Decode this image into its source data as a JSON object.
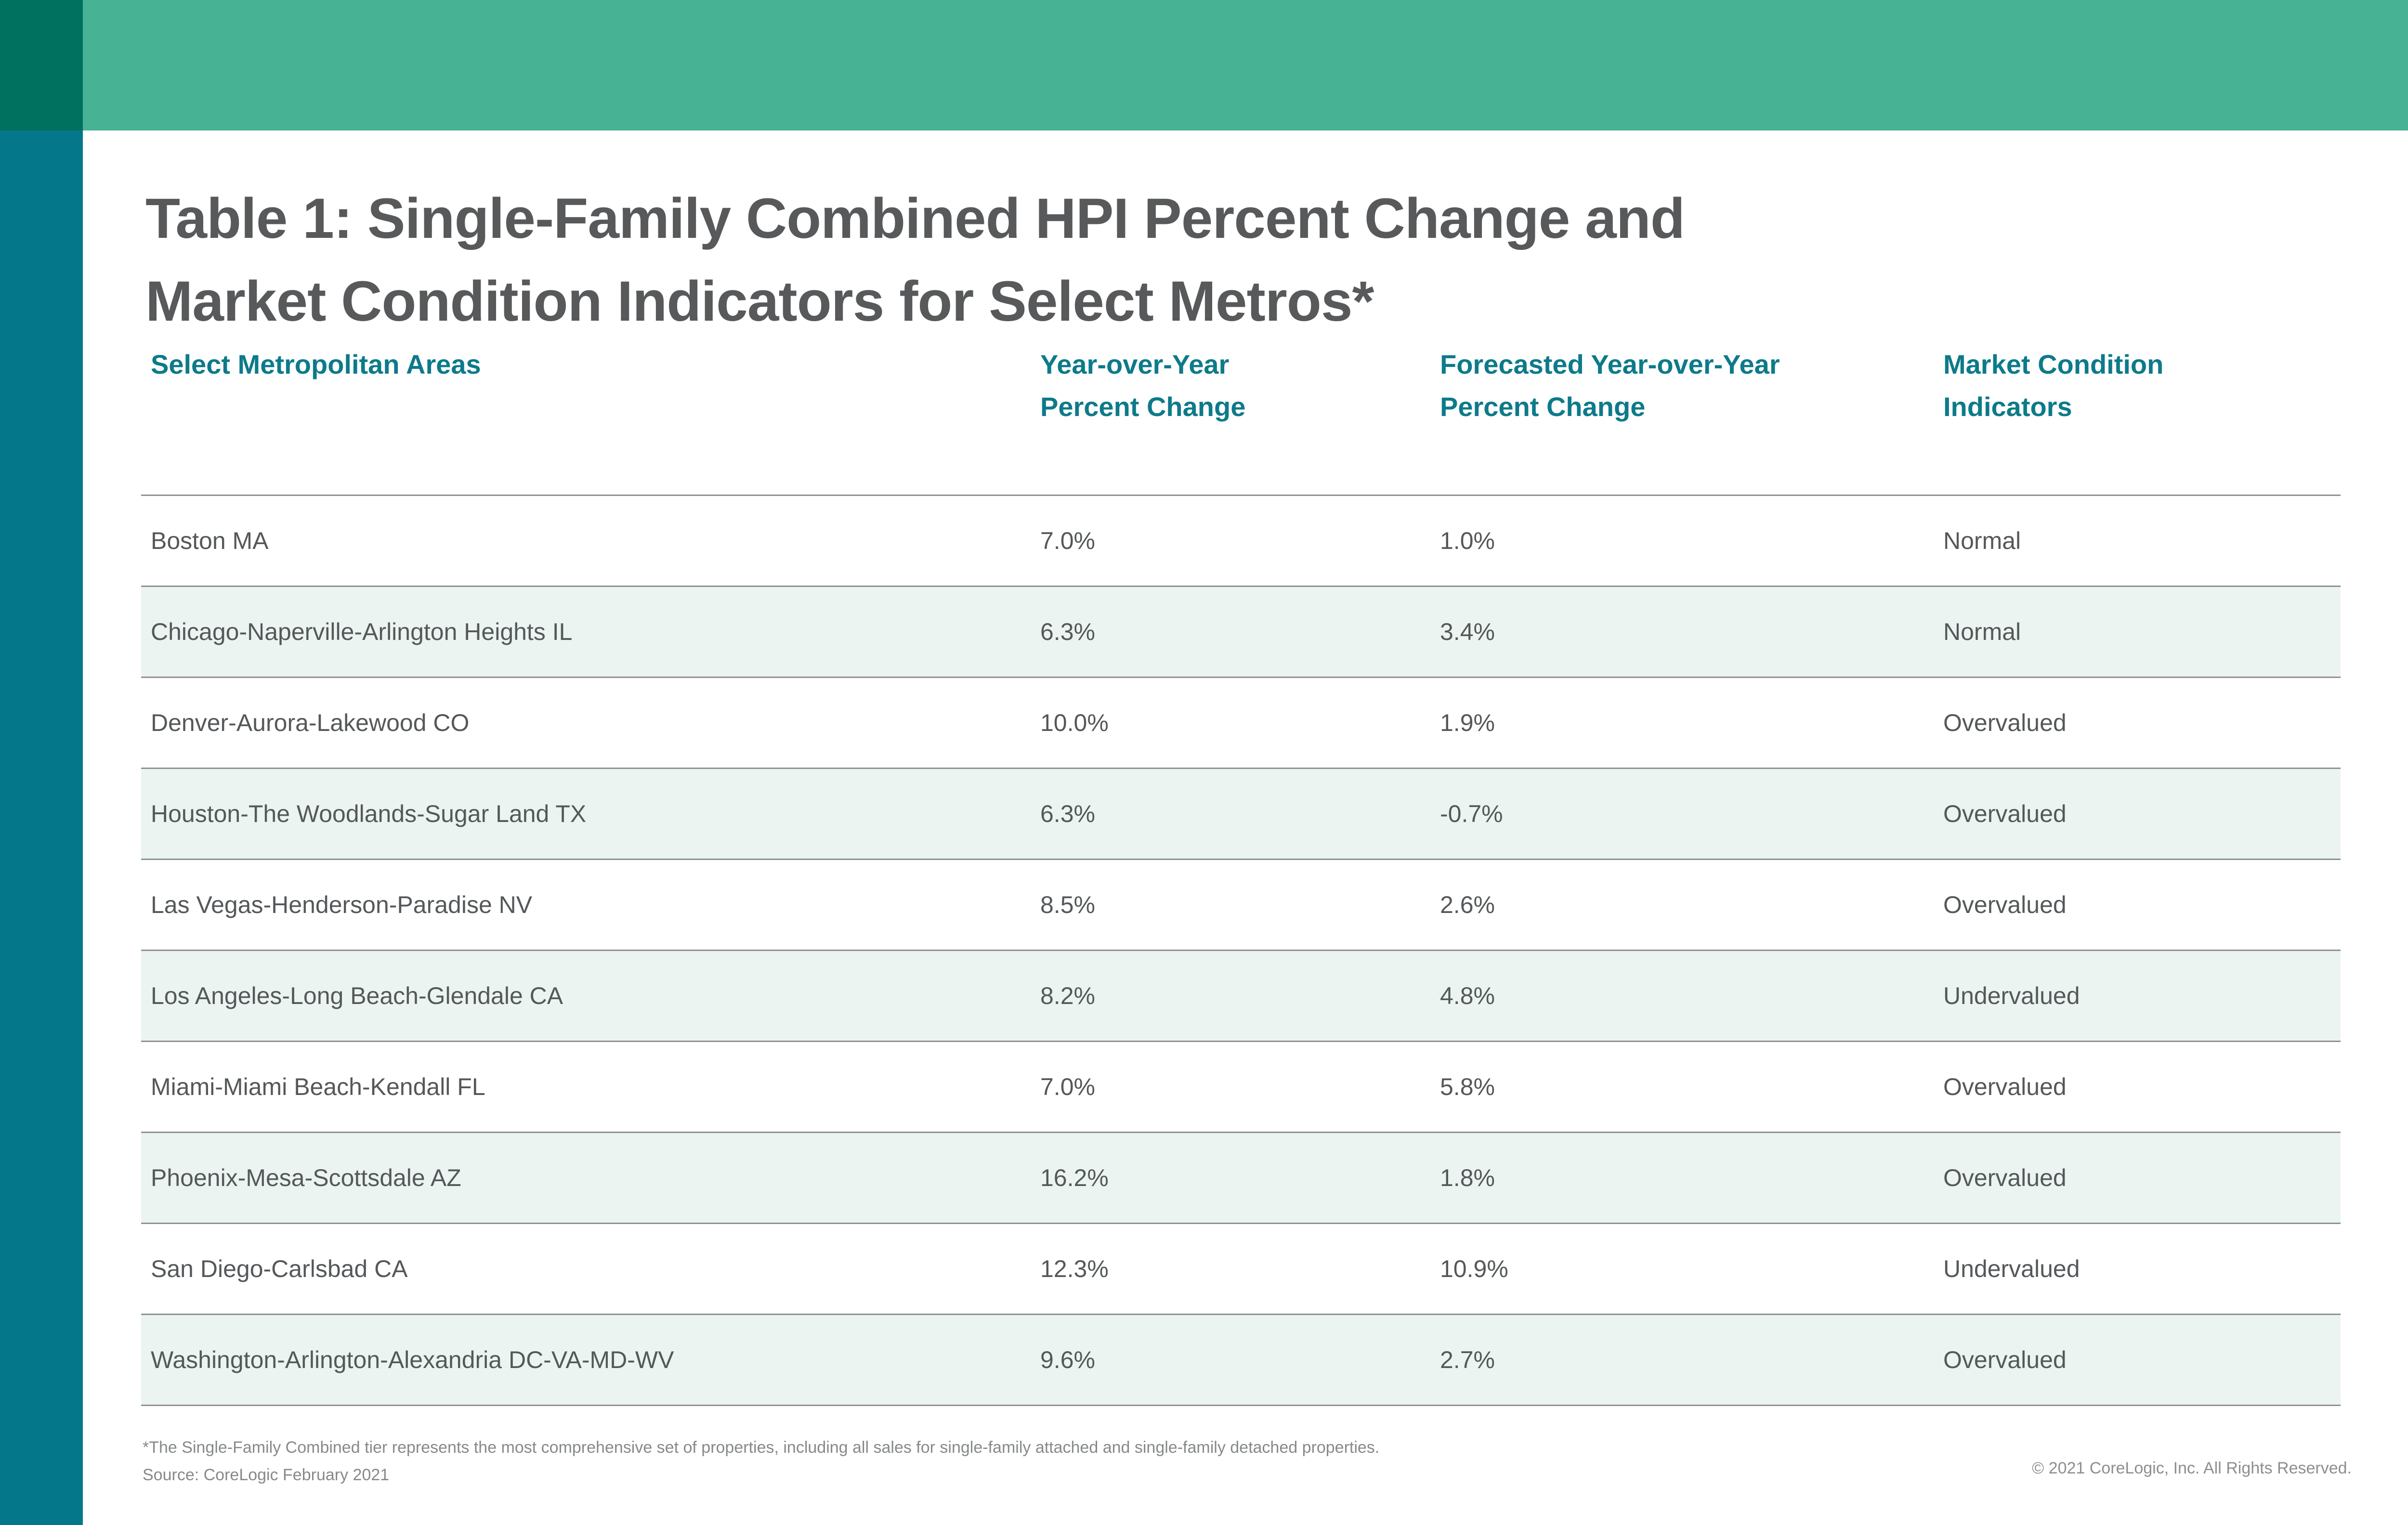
{
  "title": {
    "line1": "Table 1: Single-Family Combined HPI Percent Change and",
    "line2": "Market Condition Indicators for Select Metros*"
  },
  "table": {
    "columns": [
      {
        "label": "Select Metropolitan Areas"
      },
      {
        "label": "Year-over-Year\nPercent Change"
      },
      {
        "label": "Forecasted Year-over-Year\nPercent Change"
      },
      {
        "label": "Market Condition\nIndicators"
      }
    ],
    "rows": [
      {
        "metro": "Boston MA",
        "yoy": "7.0%",
        "forecast": "1.0%",
        "indicator": "Normal"
      },
      {
        "metro": "Chicago-Naperville-Arlington Heights IL",
        "yoy": "6.3%",
        "forecast": "3.4%",
        "indicator": "Normal"
      },
      {
        "metro": "Denver-Aurora-Lakewood CO",
        "yoy": "10.0%",
        "forecast": "1.9%",
        "indicator": "Overvalued"
      },
      {
        "metro": "Houston-The Woodlands-Sugar Land TX",
        "yoy": "6.3%",
        "forecast": "-0.7%",
        "indicator": "Overvalued"
      },
      {
        "metro": "Las Vegas-Henderson-Paradise NV",
        "yoy": "8.5%",
        "forecast": "2.6%",
        "indicator": "Overvalued"
      },
      {
        "metro": "Los Angeles-Long Beach-Glendale CA",
        "yoy": "8.2%",
        "forecast": "4.8%",
        "indicator": "Undervalued"
      },
      {
        "metro": "Miami-Miami Beach-Kendall FL",
        "yoy": "7.0%",
        "forecast": "5.8%",
        "indicator": "Overvalued"
      },
      {
        "metro": "Phoenix-Mesa-Scottsdale AZ",
        "yoy": "16.2%",
        "forecast": "1.8%",
        "indicator": "Overvalued"
      },
      {
        "metro": "San Diego-Carlsbad CA",
        "yoy": "12.3%",
        "forecast": "10.9%",
        "indicator": "Undervalued"
      },
      {
        "metro": "Washington-Arlington-Alexandria DC-VA-MD-WV",
        "yoy": "9.6%",
        "forecast": "2.7%",
        "indicator": "Overvalued"
      }
    ]
  },
  "footer": {
    "note": "*The Single-Family Combined tier represents the most comprehensive set of properties, including all sales for single-family attached and single-family detached properties.",
    "source": "Source: CoreLogic February 2021",
    "copyright": "© 2021 CoreLogic, Inc. All Rights Reserved."
  },
  "colors": {
    "top_bar_green": "#48b294",
    "corner_dark_green": "#00705f",
    "side_strip_teal": "#04788a",
    "heading_teal": "#0d7a8a",
    "title_gray": "#57595b",
    "body_gray": "#55585a",
    "row_shade_mint": "#ebf4f0",
    "divider_gray": "#8f9392",
    "footnote_gray": "#86898b"
  }
}
